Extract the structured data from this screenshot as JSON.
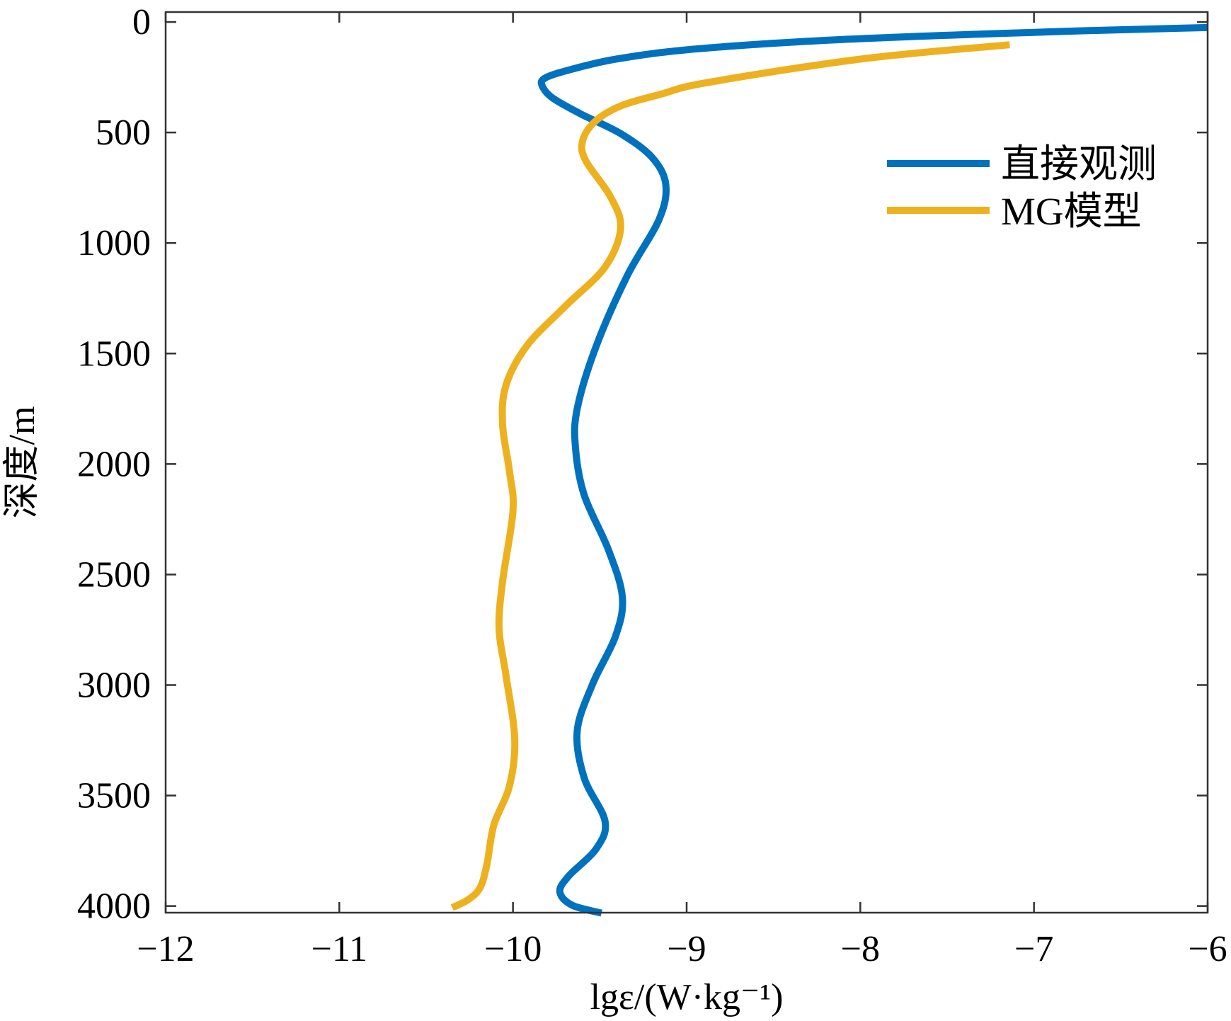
{
  "chart_data": {
    "type": "line",
    "title": "",
    "xlabel": "lgε/(W·kg⁻¹)",
    "ylabel": "深度/m",
    "xlim": [
      -12,
      -6
    ],
    "ylim": [
      -45,
      4030
    ],
    "y_reversed": true,
    "grid": false,
    "legend_position": "top-right",
    "xticks": [
      -12,
      -11,
      -10,
      -9,
      -8,
      -7,
      -6
    ],
    "xtick_labels": [
      "−12",
      "−11",
      "−10",
      "−9",
      "−8",
      "−7",
      "−6"
    ],
    "yticks": [
      0,
      500,
      1000,
      1500,
      2000,
      2500,
      3000,
      3500,
      4000
    ],
    "ytick_labels": [
      "0",
      "500",
      "1000",
      "1500",
      "2000",
      "2500",
      "3000",
      "3500",
      "4000"
    ],
    "series": [
      {
        "name": "直接观测",
        "color": "#0072BD",
        "x": [
          -6.0,
          -6.85,
          -8.07,
          -8.93,
          -9.4,
          -9.69,
          -9.82,
          -9.83,
          -9.77,
          -9.61,
          -9.38,
          -9.2,
          -9.12,
          -9.16,
          -9.34,
          -9.52,
          -9.63,
          -9.64,
          -9.59,
          -9.45,
          -9.37,
          -9.41,
          -9.54,
          -9.63,
          -9.59,
          -9.47,
          -9.52,
          -9.68,
          -9.73,
          -9.66,
          -9.49
        ],
        "y": [
          25,
          43,
          78,
          121,
          167,
          220,
          256,
          292,
          345,
          416,
          505,
          612,
          736,
          896,
          1145,
          1465,
          1749,
          1927,
          2140,
          2389,
          2603,
          2780,
          2993,
          3207,
          3420,
          3616,
          3740,
          3865,
          3936,
          3996,
          4032
        ]
      },
      {
        "name": "MG模型",
        "color": "#EDB120",
        "x": [
          -7.14,
          -7.99,
          -8.88,
          -9.15,
          -9.38,
          -9.53,
          -9.6,
          -9.58,
          -9.44,
          -9.38,
          -9.47,
          -9.7,
          -9.92,
          -10.04,
          -10.06,
          -10.02,
          -10.0,
          -10.06,
          -10.08,
          -10.04,
          -9.99,
          -10.02,
          -10.11,
          -10.15,
          -10.19,
          -10.26,
          -10.35
        ],
        "y": [
          103,
          167,
          274,
          327,
          380,
          452,
          541,
          629,
          789,
          932,
          1109,
          1287,
          1465,
          1643,
          1820,
          2034,
          2212,
          2532,
          2745,
          2958,
          3243,
          3456,
          3633,
          3811,
          3918,
          3972,
          4007
        ]
      }
    ]
  }
}
